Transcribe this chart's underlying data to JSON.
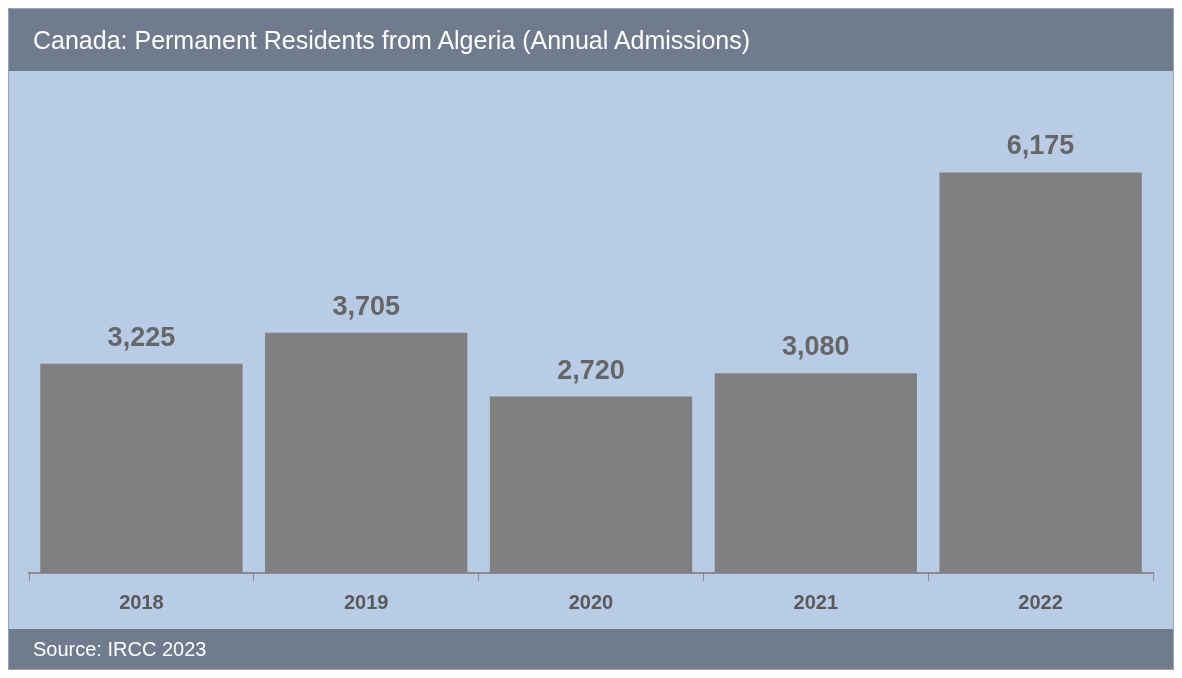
{
  "chart_data": {
    "type": "bar",
    "title": "Canada: Permanent Residents from Algeria (Annual Admissions)",
    "categories": [
      "2018",
      "2019",
      "2020",
      "2021",
      "2022"
    ],
    "values": [
      3225,
      3705,
      2720,
      3080,
      6175
    ],
    "color": "#808080",
    "value_labels": [
      "3,225",
      "3,705",
      "2,720",
      "3,080",
      "6,175"
    ],
    "grid": false,
    "legend": false,
    "annotations": [
      "Source: IRCC 2023"
    ]
  }
}
